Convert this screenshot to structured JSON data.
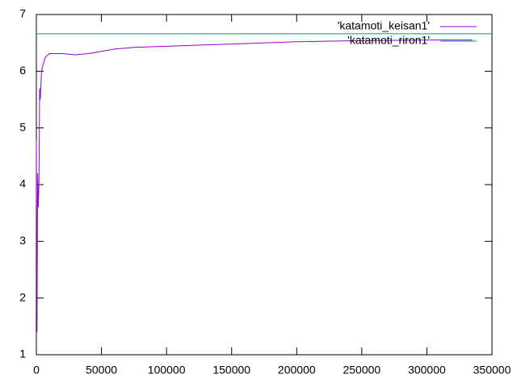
{
  "chart_data": {
    "type": "line",
    "series": [
      {
        "name": "'katamoti_keisan1'",
        "color": "#9400d3",
        "x": [
          0,
          500,
          1000,
          1500,
          2000,
          2500,
          3000,
          4000,
          5000,
          7000,
          10000,
          20000,
          30000,
          40000,
          50000,
          60000,
          75000,
          100000,
          150000,
          200000,
          250000,
          300000,
          335000
        ],
        "values": [
          4.8,
          1.4,
          4.2,
          3.6,
          4.0,
          5.7,
          5.5,
          6.0,
          6.1,
          6.25,
          6.31,
          6.31,
          6.29,
          6.31,
          6.35,
          6.39,
          6.42,
          6.44,
          6.48,
          6.52,
          6.54,
          6.55,
          6.55
        ]
      },
      {
        "name": "'katamoti_riron1'",
        "color": "#009e73",
        "x": [
          0,
          350000
        ],
        "values": [
          6.66,
          6.66
        ]
      }
    ],
    "xlim": [
      0,
      350000
    ],
    "xticks": [
      0,
      50000,
      100000,
      150000,
      200000,
      250000,
      300000,
      350000
    ],
    "ylim": [
      1,
      7
    ],
    "yticks": [
      1,
      2,
      3,
      4,
      5,
      6,
      7
    ],
    "grid": false,
    "legend": "top-right"
  }
}
